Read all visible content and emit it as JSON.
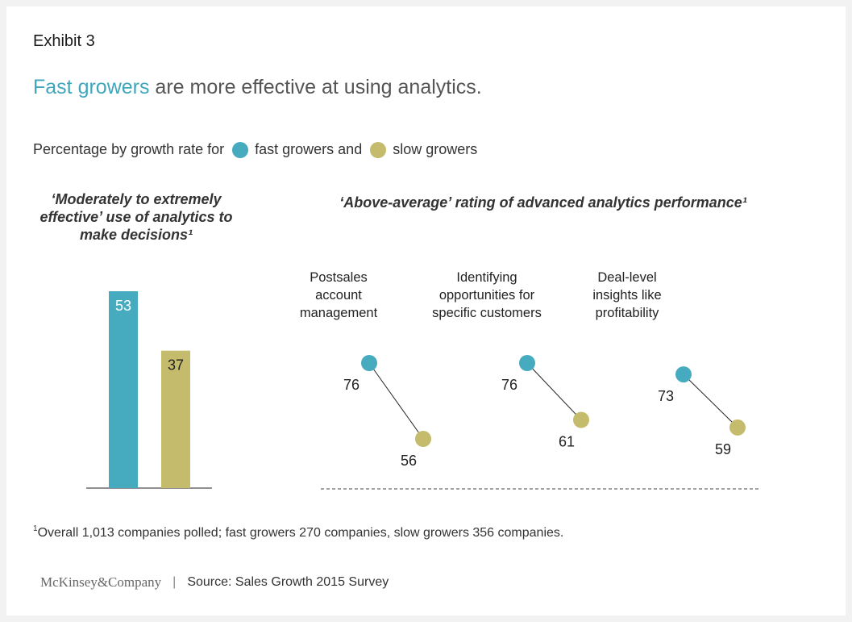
{
  "exhibit_label": "Exhibit 3",
  "headline": {
    "highlight": "Fast growers",
    "rest": " are more effective at using analytics."
  },
  "legend": {
    "prefix": "Percentage by growth rate for",
    "fast_label": "fast growers and",
    "slow_label": "slow growers",
    "fast_color": "#46abbf",
    "slow_color": "#c5bb6d"
  },
  "chart_data": [
    {
      "type": "bar",
      "title": "‘Moderately to extremely effective’ use of analytics to make decisions¹",
      "categories": [
        "fast growers",
        "slow growers"
      ],
      "values": [
        53,
        37
      ],
      "value_labels": [
        "53",
        "37"
      ],
      "colors": [
        "#46abbf",
        "#c5bb6d"
      ],
      "ylim": [
        0,
        53
      ]
    },
    {
      "type": "scatter",
      "title": "‘Above-average’ rating of advanced analytics performance¹",
      "categories": [
        {
          "lines": [
            "Postsales",
            "account",
            "management"
          ]
        },
        {
          "lines": [
            "Identifying",
            "opportunities for",
            "specific customers"
          ]
        },
        {
          "lines": [
            "Deal-level",
            "insights like",
            "profitability"
          ]
        }
      ],
      "series": [
        {
          "name": "fast growers",
          "values": [
            76,
            76,
            73
          ],
          "labels": [
            "76",
            "76",
            "73"
          ],
          "color": "#46abbf"
        },
        {
          "name": "slow growers",
          "values": [
            56,
            61,
            59
          ],
          "labels": [
            "56",
            "61",
            "59"
          ],
          "color": "#c5bb6d"
        }
      ]
    }
  ],
  "footnote": {
    "mark": "1",
    "text": "Overall 1,013 companies polled; fast growers 270 companies, slow growers 356 companies."
  },
  "source": {
    "brand": "McKinsey&Company",
    "separator": "|",
    "text": "Source: Sales Growth 2015 Survey"
  }
}
